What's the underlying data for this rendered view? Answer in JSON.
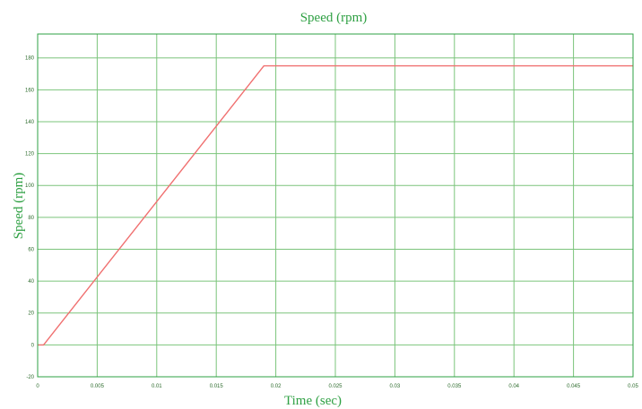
{
  "chart_data": {
    "type": "line",
    "title": "Speed (rpm)",
    "xlabel": "Time (sec)",
    "ylabel": "Speed (rpm)",
    "xlim": [
      0,
      0.05
    ],
    "ylim": [
      -20,
      195
    ],
    "xticks": [
      0,
      0.005,
      0.01,
      0.015,
      0.02,
      0.025,
      0.03,
      0.035,
      0.04,
      0.045,
      0.05
    ],
    "xtick_labels": [
      "0",
      "0.005",
      "0.01",
      "0.015",
      "0.02",
      "0.025",
      "0.03",
      "0.035",
      "0.04",
      "0.045",
      "0.05"
    ],
    "yticks": [
      -20,
      0,
      20,
      40,
      60,
      80,
      100,
      120,
      140,
      160,
      180
    ],
    "ytick_labels": [
      "-20",
      "0",
      "20",
      "40",
      "60",
      "80",
      "100",
      "120",
      "140",
      "160",
      "180"
    ],
    "grid": true,
    "series": [
      {
        "color": "#f07070",
        "x": [
          0,
          0.0005,
          0.019,
          0.05
        ],
        "y": [
          0,
          0,
          175,
          175
        ]
      }
    ]
  },
  "colors": {
    "axes": "#2ea043",
    "grid": "#7bc47b",
    "text": "#2ea043",
    "line": "#f07070"
  }
}
